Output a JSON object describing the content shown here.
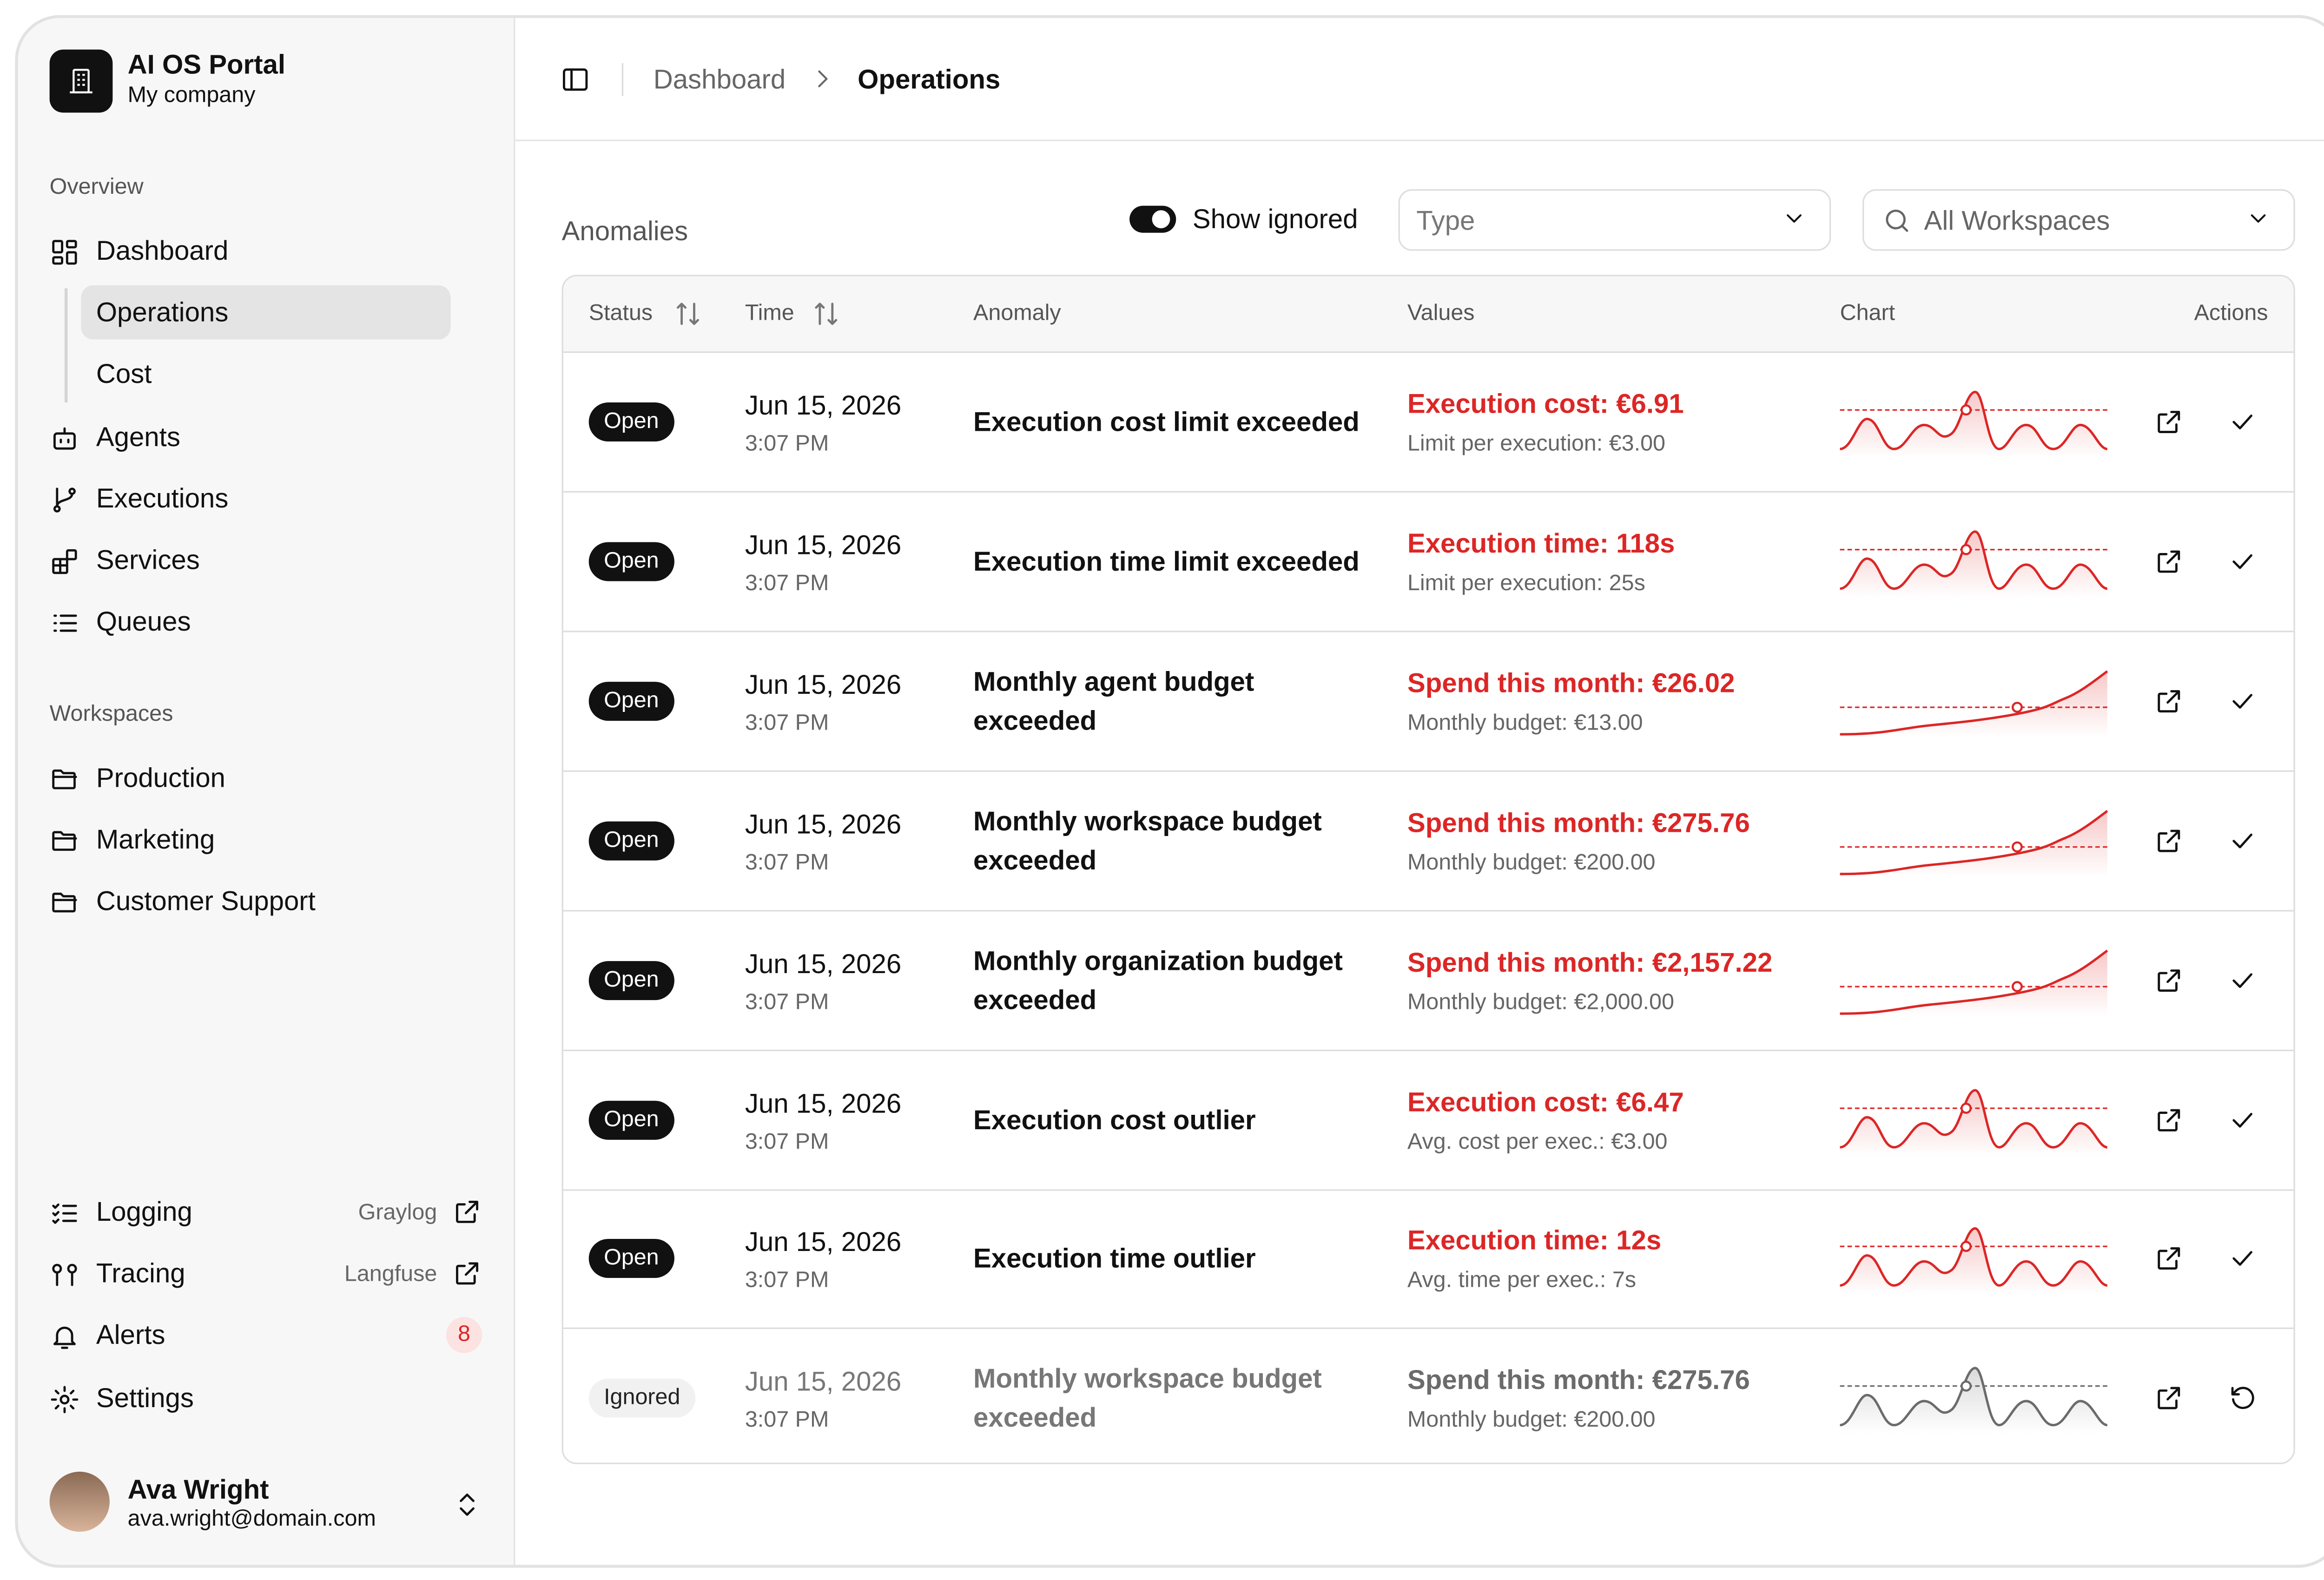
{
  "sidebar": {
    "brand": {
      "title": "AI OS Portal",
      "subtitle": "My company"
    },
    "overview": {
      "title": "Overview",
      "items": [
        "Dashboard",
        "Operations",
        "Cost",
        "Agents",
        "Executions",
        "Services",
        "Queues"
      ]
    },
    "workspaces": {
      "title": "Workspaces",
      "items": [
        "Production",
        "Marketing",
        "Customer Support"
      ]
    },
    "tools": [
      {
        "label": "Logging",
        "hint": "Graylog"
      },
      {
        "label": "Tracing",
        "hint": "Langfuse"
      },
      {
        "label": "Alerts",
        "badge": "8"
      },
      {
        "label": "Settings"
      }
    ],
    "user": {
      "name": "Ava Wright",
      "email": "ava.wright@domain.com"
    }
  },
  "header": {
    "breadcrumb": [
      "Dashboard",
      "Operations"
    ]
  },
  "toolbar": {
    "title": "Anomalies",
    "toggle": "Show ignored",
    "type_filter": "Type",
    "workspace_filter": "All Workspaces"
  },
  "table": {
    "columns": [
      "Status",
      "Time",
      "Anomaly",
      "Values",
      "Chart",
      "Actions"
    ],
    "rows": [
      {
        "status": "Open",
        "date": "Jun 15, 2026",
        "time": "3:07 PM",
        "anomaly": "Execution cost limit exceeded",
        "value": "Execution cost: €6.91",
        "limit": "Limit per execution: €3.00",
        "color": "#dc2626",
        "chart": "spike",
        "action": "check"
      },
      {
        "status": "Open",
        "date": "Jun 15, 2026",
        "time": "3:07 PM",
        "anomaly": "Execution time limit exceeded",
        "value": "Execution time: 118s",
        "limit": "Limit per execution: 25s",
        "color": "#dc2626",
        "chart": "spike",
        "action": "check"
      },
      {
        "status": "Open",
        "date": "Jun 15, 2026",
        "time": "3:07 PM",
        "anomaly": "Monthly agent budget exceeded",
        "value": "Spend this month: €26.02",
        "limit": "Monthly budget: €13.00",
        "color": "#dc2626",
        "chart": "trend",
        "action": "check"
      },
      {
        "status": "Open",
        "date": "Jun 15, 2026",
        "time": "3:07 PM",
        "anomaly": "Monthly workspace budget exceeded",
        "value": "Spend this month: €275.76",
        "limit": "Monthly budget: €200.00",
        "color": "#dc2626",
        "chart": "trend",
        "action": "check"
      },
      {
        "status": "Open",
        "date": "Jun 15, 2026",
        "time": "3:07 PM",
        "anomaly": "Monthly organization budget exceeded",
        "value": "Spend this month: €2,157.22",
        "limit": "Monthly budget: €2,000.00",
        "color": "#dc2626",
        "chart": "trend",
        "action": "check"
      },
      {
        "status": "Open",
        "date": "Jun 15, 2026",
        "time": "3:07 PM",
        "anomaly": "Execution cost outlier",
        "value": "Execution cost: €6.47",
        "limit": "Avg. cost per exec.: €3.00",
        "color": "#dc2626",
        "chart": "spike",
        "action": "check"
      },
      {
        "status": "Open",
        "date": "Jun 15, 2026",
        "time": "3:07 PM",
        "anomaly": "Execution time outlier",
        "value": "Execution time: 12s",
        "limit": "Avg. time per exec.: 7s",
        "color": "#dc2626",
        "chart": "spike",
        "action": "check"
      },
      {
        "status": "Ignored",
        "date": "Jun 15, 2026",
        "time": "3:07 PM",
        "anomaly": "Monthly workspace budget exceeded",
        "value": "Spend this month: €275.76",
        "limit": "Monthly budget: €200.00",
        "color": "#6b6b6b",
        "chart": "spike",
        "action": "restore"
      }
    ]
  }
}
